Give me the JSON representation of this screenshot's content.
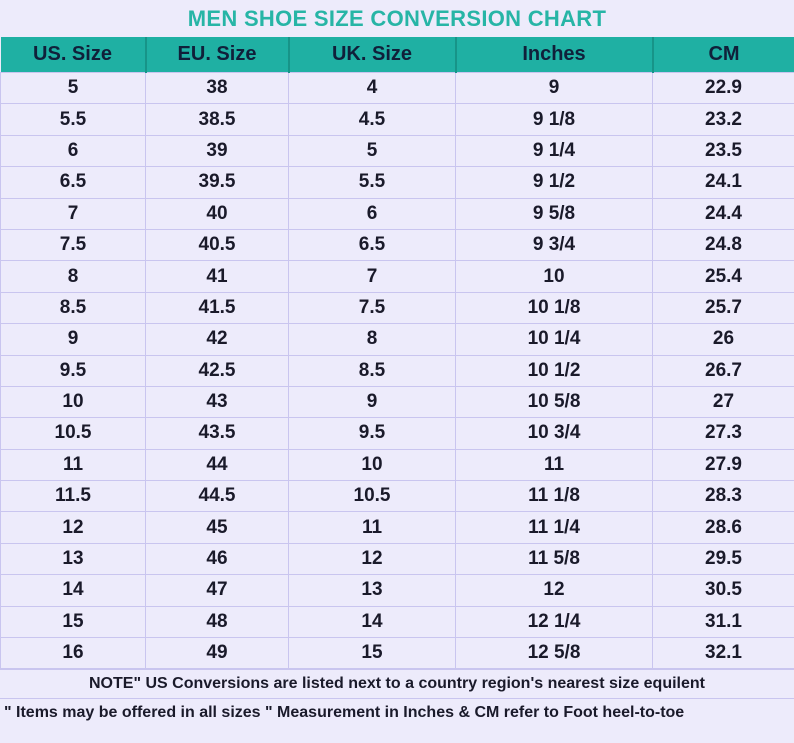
{
  "chart_data": {
    "type": "table",
    "title": "MEN SHOE SIZE CONVERSION CHART",
    "columns": [
      "US. Size",
      "EU. Size",
      "UK. Size",
      "Inches",
      "CM"
    ],
    "rows": [
      [
        "5",
        "38",
        "4",
        "9",
        "22.9"
      ],
      [
        "5.5",
        "38.5",
        "4.5",
        "9 1/8",
        "23.2"
      ],
      [
        "6",
        "39",
        "5",
        "9 1/4",
        "23.5"
      ],
      [
        "6.5",
        "39.5",
        "5.5",
        "9 1/2",
        "24.1"
      ],
      [
        "7",
        "40",
        "6",
        "9 5/8",
        "24.4"
      ],
      [
        "7.5",
        "40.5",
        "6.5",
        "9 3/4",
        "24.8"
      ],
      [
        "8",
        "41",
        "7",
        "10",
        "25.4"
      ],
      [
        "8.5",
        "41.5",
        "7.5",
        "10 1/8",
        "25.7"
      ],
      [
        "9",
        "42",
        "8",
        "10 1/4",
        "26"
      ],
      [
        "9.5",
        "42.5",
        "8.5",
        "10 1/2",
        "26.7"
      ],
      [
        "10",
        "43",
        "9",
        "10 5/8",
        "27"
      ],
      [
        "10.5",
        "43.5",
        "9.5",
        "10 3/4",
        "27.3"
      ],
      [
        "11",
        "44",
        "10",
        "11",
        "27.9"
      ],
      [
        "11.5",
        "44.5",
        "10.5",
        "11 1/8",
        "28.3"
      ],
      [
        "12",
        "45",
        "11",
        "11 1/4",
        "28.6"
      ],
      [
        "13",
        "46",
        "12",
        "11 5/8",
        "29.5"
      ],
      [
        "14",
        "47",
        "13",
        "12",
        "30.5"
      ],
      [
        "15",
        "48",
        "14",
        "12 1/4",
        "31.1"
      ],
      [
        "16",
        "49",
        "15",
        "12 5/8",
        "32.1"
      ]
    ],
    "notes": [
      "NOTE\" US Conversions are listed next to a country region's nearest size equilent",
      "\" Items may be offered in all sizes \" Measurement in Inches & CM refer to Foot heel-to-toe"
    ]
  },
  "colors": {
    "header": "#1fb0a3",
    "title": "#27b5a6",
    "background": "#edebfb"
  }
}
